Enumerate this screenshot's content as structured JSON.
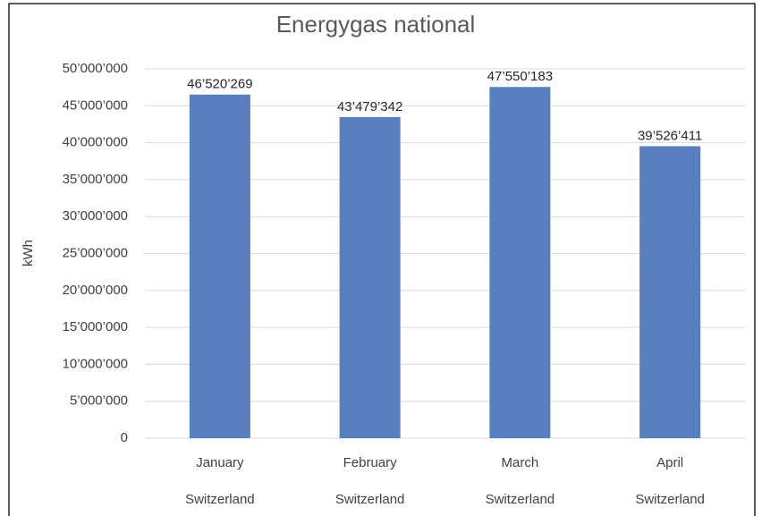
{
  "chart_data": {
    "type": "bar",
    "title": "Energygas national",
    "ylabel": "kWh",
    "categories": [
      "January",
      "February",
      "March",
      "April"
    ],
    "category_groups": [
      "Switzerland",
      "Switzerland",
      "Switzerland",
      "Switzerland"
    ],
    "values": [
      46520269,
      43479342,
      47550183,
      39526411
    ],
    "value_labels": [
      "46’520’269",
      "43’479’342",
      "47’550’183",
      "39’526’411"
    ],
    "color": "#5a7fc0",
    "ylim": [
      0,
      50000000
    ],
    "yticks": [
      0,
      {
        "value": 5000000,
        "label": "5’000’000"
      },
      {
        "value": 10000000,
        "label": "10’000’000"
      },
      {
        "value": 15000000,
        "label": "15’000’000"
      },
      {
        "value": 20000000,
        "label": "20’000’000"
      },
      {
        "value": 25000000,
        "label": "25’000’000"
      },
      {
        "value": 30000000,
        "label": "30’000’000"
      },
      {
        "value": 35000000,
        "label": "35’000’000"
      },
      {
        "value": 40000000,
        "label": "40’000’000"
      },
      {
        "value": 45000000,
        "label": "45’000’000"
      },
      {
        "value": 50000000,
        "label": "50’000’000"
      }
    ],
    "grid": true
  }
}
